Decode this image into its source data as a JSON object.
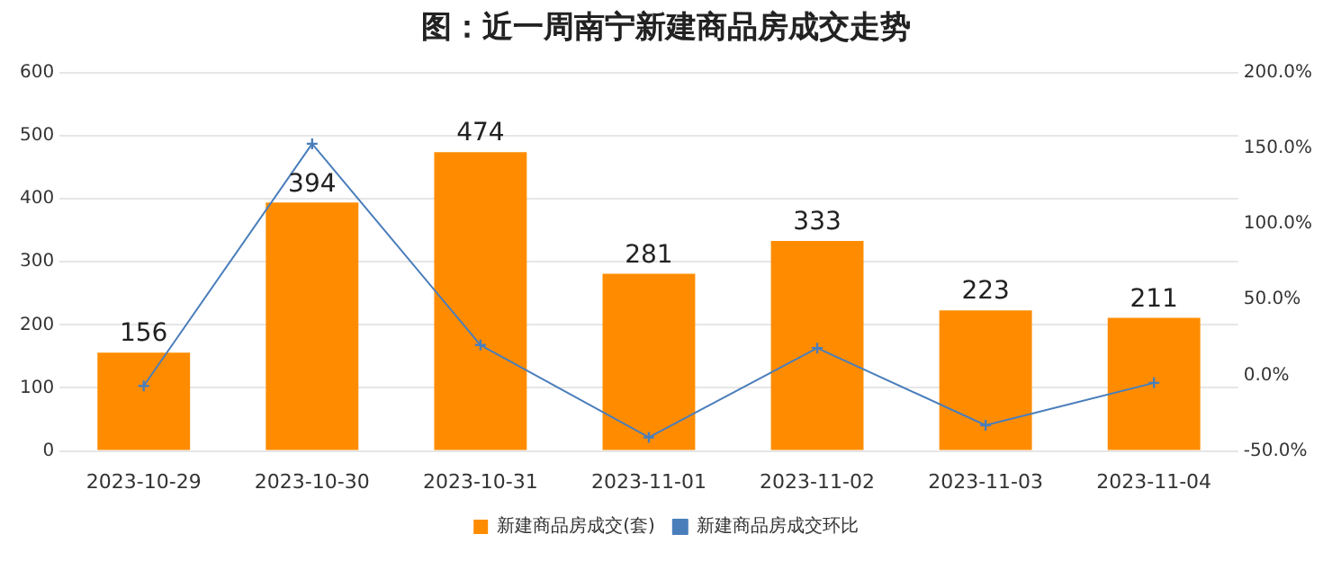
{
  "chart_data": {
    "type": "bar",
    "title": "图：近一周南宁新建商品房成交走势",
    "categories": [
      "2023-10-29",
      "2023-10-30",
      "2023-10-31",
      "2023-11-01",
      "2023-11-02",
      "2023-11-03",
      "2023-11-04"
    ],
    "series": [
      {
        "name": "新建商品房成交(套)",
        "color": "#ff8c00",
        "values": [
          156,
          394,
          474,
          281,
          333,
          223,
          211
        ],
        "value_labels": [
          "156",
          "394",
          "474",
          "281",
          "333",
          "223",
          "211"
        ]
      },
      {
        "name": "新建商品房成交环比",
        "type": "line",
        "axis": "y2",
        "color": "#4a7ebb",
        "marker": "cross",
        "values": [
          -7,
          153,
          20,
          -41,
          18,
          -33,
          -5
        ]
      }
    ],
    "ylim": [
      0,
      600
    ],
    "yticks": [
      0,
      100,
      200,
      300,
      400,
      500,
      600
    ],
    "y2lim": [
      -50,
      200
    ],
    "y2ticks": [
      {
        "value": -50,
        "label": "-50.0%"
      },
      {
        "value": 0,
        "label": "0.0%"
      },
      {
        "value": 50,
        "label": "50.0%"
      },
      {
        "value": 100,
        "label": "100.0%"
      },
      {
        "value": 150,
        "label": "150.0%"
      },
      {
        "value": 200,
        "label": "200.0%"
      }
    ],
    "grid": "y",
    "legend": "bottom"
  }
}
